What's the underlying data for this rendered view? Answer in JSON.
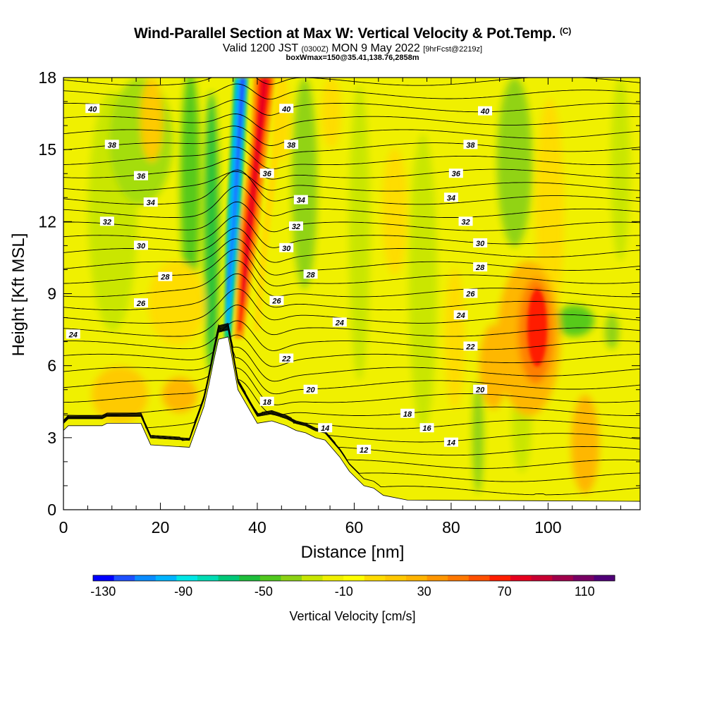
{
  "header": {
    "title": "Wind-Parallel Section at Max W: Vertical Velocity & Pot.Temp.",
    "title_mark": "(C)",
    "valid_prefix": "Valid 1200 JST",
    "valid_utc": "(0300Z)",
    "valid_date": "MON 9 May 2022",
    "forecast": "[9hrFcst@2219z]",
    "box_info": "boxWmax=150@35.41,138.76,2858m"
  },
  "chart_data": {
    "type": "heatmap",
    "xlabel": "Distance [nm]",
    "ylabel": "Height [Kft MSL]",
    "xlim": [
      0,
      119
    ],
    "ylim": [
      0,
      18
    ],
    "x_ticks": [
      "0",
      "20",
      "40",
      "60",
      "80",
      "100"
    ],
    "x_tick_values": [
      0,
      20,
      40,
      60,
      80,
      100
    ],
    "y_ticks": [
      "0",
      "3",
      "6",
      "9",
      "12",
      "15",
      "18"
    ],
    "y_tick_values": [
      0,
      3,
      6,
      9,
      12,
      15,
      18
    ],
    "colorbar": {
      "label": "Vertical Velocity [cm/s]",
      "tick_labels": [
        "-130",
        "-90",
        "-50",
        "-10",
        "30",
        "70",
        "110"
      ],
      "tick_values": [
        -130,
        -90,
        -50,
        -10,
        30,
        70,
        110
      ],
      "colors": [
        "#0000ff",
        "#1e50ff",
        "#0a8cff",
        "#00b4ff",
        "#00e6e6",
        "#00dcb4",
        "#00c878",
        "#1ebe3c",
        "#50c81e",
        "#8cd214",
        "#c8e600",
        "#f0f000",
        "#ffff00",
        "#ffdc00",
        "#ffc800",
        "#ffb400",
        "#ff9600",
        "#ff7800",
        "#ff5000",
        "#ff1e00",
        "#e6001e",
        "#c80032",
        "#a0004b",
        "#780064",
        "#500078"
      ]
    },
    "terrain_kft": [
      [
        0,
        3.3
      ],
      [
        1,
        3.5
      ],
      [
        8,
        3.5
      ],
      [
        9,
        3.6
      ],
      [
        16,
        3.6
      ],
      [
        18,
        2.7
      ],
      [
        26,
        2.6
      ],
      [
        29,
        4.3
      ],
      [
        30,
        5.2
      ],
      [
        31,
        6.2
      ],
      [
        32,
        7.1
      ],
      [
        34,
        7.2
      ],
      [
        35,
        6.1
      ],
      [
        36,
        5.0
      ],
      [
        38,
        4.3
      ],
      [
        40,
        3.6
      ],
      [
        43,
        3.7
      ],
      [
        46,
        3.5
      ],
      [
        48,
        3.3
      ],
      [
        50,
        3.2
      ],
      [
        52,
        3.0
      ],
      [
        54,
        2.9
      ],
      [
        57,
        2.2
      ],
      [
        59,
        1.6
      ],
      [
        62,
        1.0
      ],
      [
        64,
        0.9
      ],
      [
        66,
        0.6
      ],
      [
        71,
        0.4
      ],
      [
        119,
        0.35
      ]
    ],
    "isentrope_labels": [
      {
        "text": "40",
        "x": 6,
        "y": 16.7
      },
      {
        "text": "40",
        "x": 46,
        "y": 16.7
      },
      {
        "text": "40",
        "x": 87,
        "y": 16.6
      },
      {
        "text": "38",
        "x": 10,
        "y": 15.2
      },
      {
        "text": "38",
        "x": 47,
        "y": 15.2
      },
      {
        "text": "38",
        "x": 84,
        "y": 15.2
      },
      {
        "text": "36",
        "x": 16,
        "y": 13.9
      },
      {
        "text": "36",
        "x": 42,
        "y": 14.0
      },
      {
        "text": "36",
        "x": 81,
        "y": 14.0
      },
      {
        "text": "34",
        "x": 18,
        "y": 12.8
      },
      {
        "text": "34",
        "x": 49,
        "y": 12.9
      },
      {
        "text": "34",
        "x": 80,
        "y": 13.0
      },
      {
        "text": "32",
        "x": 9,
        "y": 12.0
      },
      {
        "text": "32",
        "x": 48,
        "y": 11.8
      },
      {
        "text": "32",
        "x": 83,
        "y": 12.0
      },
      {
        "text": "30",
        "x": 16,
        "y": 11.0
      },
      {
        "text": "30",
        "x": 46,
        "y": 10.9
      },
      {
        "text": "30",
        "x": 86,
        "y": 11.1
      },
      {
        "text": "28",
        "x": 21,
        "y": 9.7
      },
      {
        "text": "28",
        "x": 51,
        "y": 9.8
      },
      {
        "text": "28",
        "x": 86,
        "y": 10.1
      },
      {
        "text": "26",
        "x": 16,
        "y": 8.6
      },
      {
        "text": "26",
        "x": 44,
        "y": 8.7
      },
      {
        "text": "26",
        "x": 84,
        "y": 9.0
      },
      {
        "text": "24",
        "x": 2,
        "y": 7.3
      },
      {
        "text": "24",
        "x": 57,
        "y": 7.8
      },
      {
        "text": "24",
        "x": 82,
        "y": 8.1
      },
      {
        "text": "22",
        "x": 46,
        "y": 6.3
      },
      {
        "text": "22",
        "x": 84,
        "y": 6.8
      },
      {
        "text": "20",
        "x": 51,
        "y": 5.0
      },
      {
        "text": "20",
        "x": 86,
        "y": 5.0
      },
      {
        "text": "18",
        "x": 42,
        "y": 4.5
      },
      {
        "text": "18",
        "x": 71,
        "y": 4.0
      },
      {
        "text": "16",
        "x": 75,
        "y": 3.4
      },
      {
        "text": "14",
        "x": 54,
        "y": 3.4
      },
      {
        "text": "14",
        "x": 80,
        "y": 2.8
      },
      {
        "text": "12",
        "x": 62,
        "y": 2.5
      }
    ]
  }
}
